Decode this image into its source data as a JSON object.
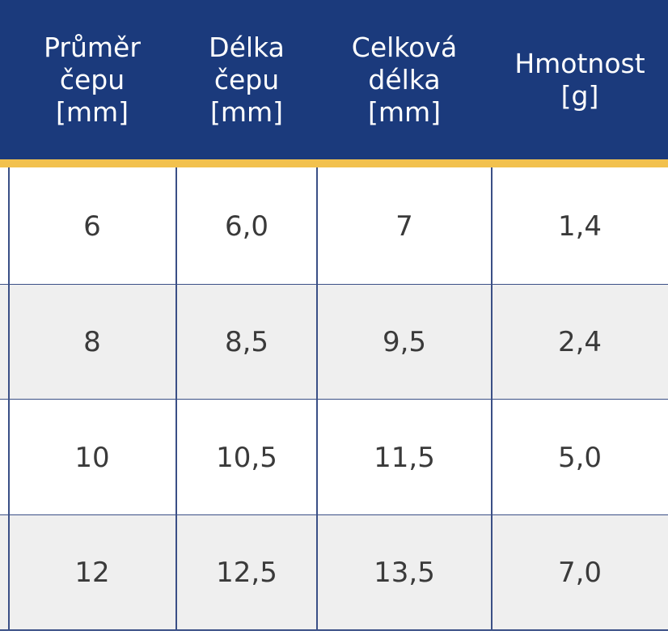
{
  "table": {
    "headers": [
      [
        "Průměr",
        "čepu",
        "[mm]"
      ],
      [
        "Délka",
        "čepu",
        "[mm]"
      ],
      [
        "Celková",
        "délka",
        "[mm]"
      ],
      [
        "Hmotnost",
        "[g]"
      ]
    ],
    "rows": [
      [
        "6",
        "6,0",
        "7",
        "1,4"
      ],
      [
        "8",
        "8,5",
        "9,5",
        "2,4"
      ],
      [
        "10",
        "10,5",
        "11,5",
        "5,0"
      ],
      [
        "12",
        "12,5",
        "13,5",
        "7,0"
      ]
    ]
  }
}
